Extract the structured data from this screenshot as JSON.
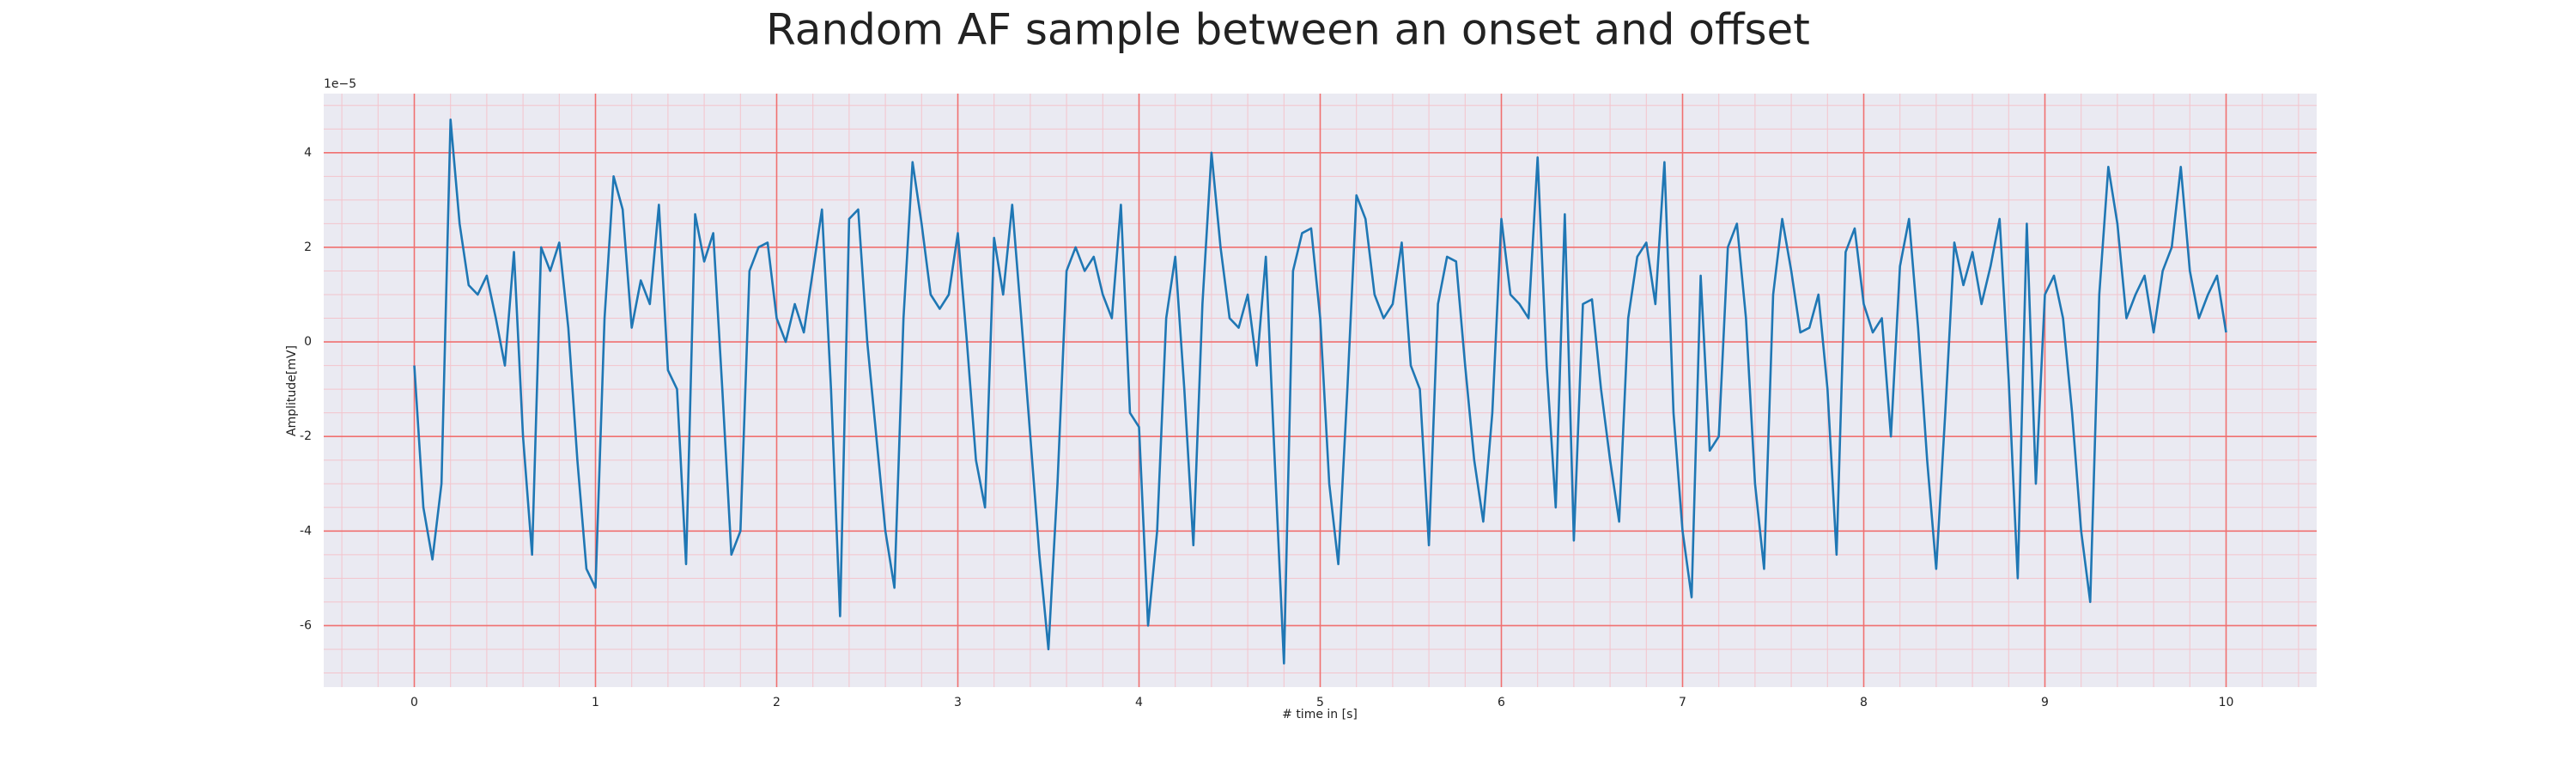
{
  "chart_data": {
    "type": "line",
    "title": "Random AF sample between an onset and offset",
    "xlabel": "# time in [s]",
    "ylabel": "Amplitude[mV]",
    "y_offset_label": "1e−5",
    "color": "#1f77b4",
    "background": "#eaeaf2",
    "grid": true,
    "grid_color": "#f07070",
    "minor_grid": true,
    "minor_grid_color": "#f3c4cc",
    "xlim": [
      -0.5,
      10.5
    ],
    "ylim": [
      -7.3,
      5.25
    ],
    "xticks": [
      0,
      1,
      2,
      3,
      4,
      5,
      6,
      7,
      8,
      9,
      10
    ],
    "yticks": [
      -6,
      -4,
      -2,
      0,
      2,
      4
    ],
    "x": [
      0,
      0.05,
      0.1,
      0.15,
      0.2,
      0.25,
      0.3,
      0.35,
      0.4,
      0.45,
      0.5,
      0.55,
      0.6,
      0.65,
      0.7,
      0.75,
      0.8,
      0.85,
      0.9,
      0.95,
      1,
      1.05,
      1.1,
      1.15,
      1.2,
      1.25,
      1.3,
      1.35,
      1.4,
      1.45,
      1.5,
      1.55,
      1.6,
      1.65,
      1.7,
      1.75,
      1.8,
      1.85,
      1.9,
      1.95,
      2,
      2.05,
      2.1,
      2.15,
      2.2,
      2.25,
      2.3,
      2.35,
      2.4,
      2.45,
      2.5,
      2.55,
      2.6,
      2.65,
      2.7,
      2.75,
      2.8,
      2.85,
      2.9,
      2.95,
      3,
      3.05,
      3.1,
      3.15,
      3.2,
      3.25,
      3.3,
      3.35,
      3.4,
      3.45,
      3.5,
      3.55,
      3.6,
      3.65,
      3.7,
      3.75,
      3.8,
      3.85,
      3.9,
      3.95,
      4,
      4.05,
      4.1,
      4.15,
      4.2,
      4.25,
      4.3,
      4.35,
      4.4,
      4.45,
      4.5,
      4.55,
      4.6,
      4.65,
      4.7,
      4.75,
      4.8,
      4.85,
      4.9,
      4.95,
      5,
      5.05,
      5.1,
      5.15,
      5.2,
      5.25,
      5.3,
      5.35,
      5.4,
      5.45,
      5.5,
      5.55,
      5.6,
      5.65,
      5.7,
      5.75,
      5.8,
      5.85,
      5.9,
      5.95,
      6,
      6.05,
      6.1,
      6.15,
      6.2,
      6.25,
      6.3,
      6.35,
      6.4,
      6.45,
      6.5,
      6.55,
      6.6,
      6.65,
      6.7,
      6.75,
      6.8,
      6.85,
      6.9,
      6.95,
      7,
      7.05,
      7.1,
      7.15,
      7.2,
      7.25,
      7.3,
      7.35,
      7.4,
      7.45,
      7.5,
      7.55,
      7.6,
      7.65,
      7.7,
      7.75,
      7.8,
      7.85,
      7.9,
      7.95,
      8,
      8.05,
      8.1,
      8.15,
      8.2,
      8.25,
      8.3,
      8.35,
      8.4,
      8.45,
      8.5,
      8.55,
      8.6,
      8.65,
      8.7,
      8.75,
      8.8,
      8.85,
      8.9,
      8.95,
      9,
      9.05,
      9.1,
      9.15,
      9.2,
      9.25,
      9.3,
      9.35,
      9.4,
      9.45,
      9.5,
      9.55,
      9.6,
      9.65,
      9.7,
      9.75,
      9.8,
      9.85,
      9.9,
      9.95,
      10
    ],
    "values": [
      -0.5,
      -3.5,
      -4.6,
      -3.0,
      4.7,
      2.5,
      1.2,
      1.0,
      1.4,
      0.5,
      -0.5,
      1.9,
      -2.0,
      -4.5,
      2.0,
      1.5,
      2.1,
      0.3,
      -2.5,
      -4.8,
      -5.2,
      0.5,
      3.5,
      2.8,
      0.3,
      1.3,
      0.8,
      2.9,
      -0.6,
      -1.0,
      -4.7,
      2.7,
      1.7,
      2.3,
      -1.0,
      -4.5,
      -4.0,
      1.5,
      2.0,
      2.1,
      0.5,
      0.0,
      0.8,
      0.2,
      1.5,
      2.8,
      -1.0,
      -5.8,
      2.6,
      2.8,
      0.0,
      -2.0,
      -4.0,
      -5.2,
      0.5,
      3.8,
      2.5,
      1.0,
      0.7,
      1.0,
      2.3,
      0.0,
      -2.5,
      -3.5,
      2.2,
      1.0,
      2.9,
      0.5,
      -2.0,
      -4.5,
      -6.5,
      -3.0,
      1.5,
      2.0,
      1.5,
      1.8,
      1.0,
      0.5,
      2.9,
      -1.5,
      -1.8,
      -6.0,
      -4.0,
      0.5,
      1.8,
      -1.0,
      -4.3,
      0.8,
      4.0,
      2.0,
      0.5,
      0.3,
      1.0,
      -0.5,
      1.8,
      -2.6,
      -6.8,
      1.5,
      2.3,
      2.4,
      0.5,
      -3.0,
      -4.7,
      -1.0,
      3.1,
      2.6,
      1.0,
      0.5,
      0.8,
      2.1,
      -0.5,
      -1.0,
      -4.3,
      0.8,
      1.8,
      1.7,
      -0.5,
      -2.5,
      -3.8,
      -1.5,
      2.6,
      1.0,
      0.8,
      0.5,
      3.9,
      -0.5,
      -3.5,
      2.7,
      -4.2,
      0.8,
      0.9,
      -1.0,
      -2.5,
      -3.8,
      0.5,
      1.8,
      2.1,
      0.8,
      3.8,
      -1.5,
      -4.0,
      -5.4,
      1.4,
      -2.3,
      -2.0,
      2.0,
      2.5,
      0.5,
      -3.0,
      -4.8,
      1.0,
      2.6,
      1.5,
      0.2,
      0.3,
      1.0,
      -1.0,
      -4.5,
      1.9,
      2.4,
      0.8,
      0.2,
      0.5,
      -2.0,
      1.6,
      2.6,
      0.3,
      -2.5,
      -4.8,
      -1.5,
      2.1,
      1.2,
      1.9,
      0.8,
      1.6,
      2.6,
      -0.8,
      -5.0,
      2.5,
      -3.0,
      1.0,
      1.4,
      0.5,
      -1.5,
      -4.0,
      -5.5,
      1.0,
      3.7,
      2.5,
      0.5,
      1.0,
      1.4,
      0.2,
      1.5,
      2.0,
      3.7,
      1.5,
      0.5,
      1.0,
      1.4,
      0.2
    ]
  }
}
